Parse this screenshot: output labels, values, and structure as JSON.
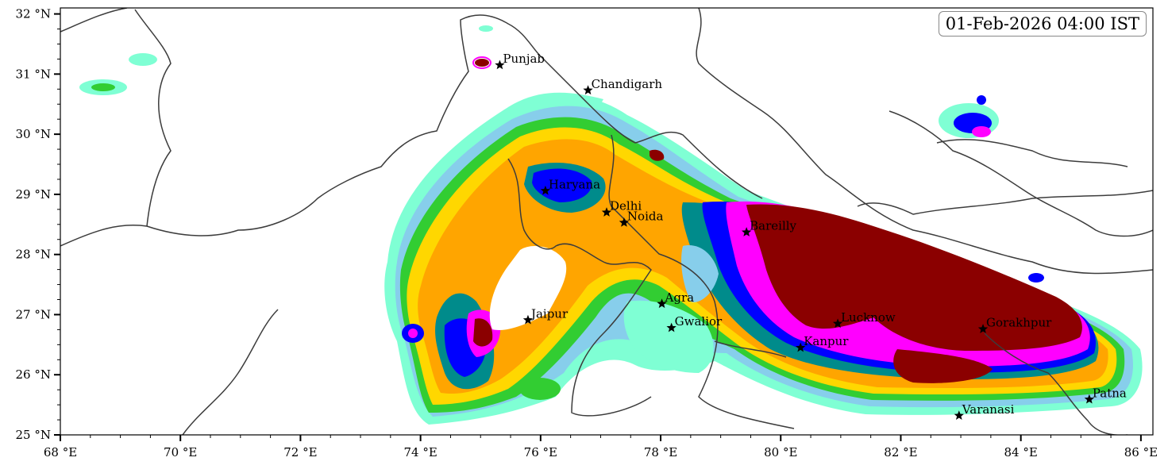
{
  "map": {
    "timestamp": "01-Feb-2026 04:00 IST",
    "projection": "plate-carree",
    "extent": {
      "lon": [
        68,
        86.2
      ],
      "lat": [
        25,
        32.1
      ]
    },
    "lon_ticks": [
      {
        "value": 68,
        "label": "68 °E"
      },
      {
        "value": 70,
        "label": "70 °E"
      },
      {
        "value": 72,
        "label": "72 °E"
      },
      {
        "value": 74,
        "label": "74 °E"
      },
      {
        "value": 76,
        "label": "76 °E"
      },
      {
        "value": 78,
        "label": "78 °E"
      },
      {
        "value": 80,
        "label": "80 °E"
      },
      {
        "value": 82,
        "label": "82 °E"
      },
      {
        "value": 84,
        "label": "84 °E"
      },
      {
        "value": 86,
        "label": "86 °E"
      }
    ],
    "lat_ticks": [
      {
        "value": 25,
        "label": "25 °N"
      },
      {
        "value": 26,
        "label": "26 °N"
      },
      {
        "value": 27,
        "label": "27 °N"
      },
      {
        "value": 28,
        "label": "28 °N"
      },
      {
        "value": 29,
        "label": "29 °N"
      },
      {
        "value": 30,
        "label": "30 °N"
      },
      {
        "value": 31,
        "label": "31 °N"
      },
      {
        "value": 32,
        "label": "32 °N"
      }
    ],
    "cities": [
      {
        "name": "Punjab",
        "lon": 75.32,
        "lat": 31.15
      },
      {
        "name": "Chandigarh",
        "lon": 76.79,
        "lat": 30.73
      },
      {
        "name": "Haryana",
        "lon": 76.08,
        "lat": 29.06
      },
      {
        "name": "Delhi",
        "lon": 77.1,
        "lat": 28.7
      },
      {
        "name": "Noida",
        "lon": 77.39,
        "lat": 28.53
      },
      {
        "name": "Bareilly",
        "lon": 79.43,
        "lat": 28.37
      },
      {
        "name": "Agra",
        "lon": 78.02,
        "lat": 27.18
      },
      {
        "name": "Jaipur",
        "lon": 75.79,
        "lat": 26.91
      },
      {
        "name": "Gwalior",
        "lon": 78.18,
        "lat": 26.78
      },
      {
        "name": "Lucknow",
        "lon": 80.95,
        "lat": 26.85
      },
      {
        "name": "Gorakhpur",
        "lon": 83.37,
        "lat": 26.76
      },
      {
        "name": "Kanpur",
        "lon": 80.33,
        "lat": 26.45
      },
      {
        "name": "Patna",
        "lon": 85.14,
        "lat": 25.59
      },
      {
        "name": "Varanasi",
        "lon": 82.97,
        "lat": 25.32
      }
    ],
    "precip_colors": [
      "#7fffd4",
      "#87ceeb",
      "#32cd32",
      "#ffd700",
      "#ffa500",
      "#008b8b",
      "#0000ff",
      "#ff00ff",
      "#8b0000"
    ]
  }
}
